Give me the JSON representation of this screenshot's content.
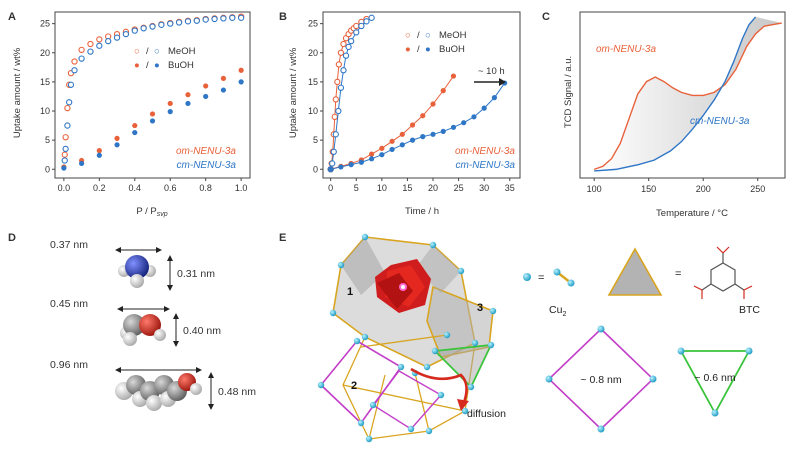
{
  "colors": {
    "om": "#e8613a",
    "cm": "#2f77c6",
    "axis": "#444444",
    "shade": "#cfcfcf",
    "oxygen": "#d62a1f",
    "nitrogen": "#2b3fa0",
    "carbon": "#8a8a8a",
    "hydrogen": "#f2f2f2",
    "cu": "#29c3e8",
    "magenta": "#c23ec8",
    "green": "#3bc43b",
    "gold": "#d9a520"
  },
  "panel_labels": [
    "A",
    "B",
    "C",
    "D",
    "E"
  ],
  "chart_data": [
    {
      "type": "scatter",
      "panel": "A",
      "xlabel": "P / P",
      "xlabel_sub": "svp",
      "ylabel": "Uptake amount / wt%",
      "xlim": [
        -0.05,
        1.05
      ],
      "ylim": [
        -1.5,
        27
      ],
      "xticks": [
        "0.0",
        "0.2",
        "0.4",
        "0.6",
        "0.8",
        "1.0"
      ],
      "yticks": [
        "0",
        "5",
        "10",
        "15",
        "20",
        "25"
      ],
      "legend": [
        {
          "left": "/",
          "right": "MeOH",
          "marker": "ring"
        },
        {
          "left": "/",
          "right": "BuOH",
          "marker": "dot"
        }
      ],
      "series_labels": [
        "om-NENU-3a",
        "cm-NENU-3a"
      ],
      "series": [
        {
          "name": "om MeOH",
          "color_key": "om",
          "marker": "ring",
          "x": [
            0.005,
            0.01,
            0.02,
            0.03,
            0.04,
            0.06,
            0.1,
            0.15,
            0.2,
            0.25,
            0.3,
            0.35,
            0.4,
            0.45,
            0.5,
            0.55,
            0.6,
            0.65,
            0.7,
            0.75,
            0.8,
            0.85,
            0.9,
            0.95,
            1.0
          ],
          "y": [
            2.5,
            5.5,
            10.5,
            14.5,
            16.5,
            18.5,
            20.5,
            21.5,
            22.3,
            22.8,
            23.2,
            23.6,
            24.0,
            24.3,
            24.6,
            24.9,
            25.1,
            25.3,
            25.5,
            25.6,
            25.8,
            25.9,
            26.0,
            26.1,
            26.2
          ]
        },
        {
          "name": "cm MeOH",
          "color_key": "cm",
          "marker": "ring",
          "x": [
            0.005,
            0.01,
            0.02,
            0.03,
            0.04,
            0.06,
            0.1,
            0.15,
            0.2,
            0.25,
            0.3,
            0.35,
            0.4,
            0.45,
            0.5,
            0.55,
            0.6,
            0.65,
            0.7,
            0.75,
            0.8,
            0.85,
            0.9,
            0.95,
            1.0
          ],
          "y": [
            1.5,
            3.5,
            7.5,
            11.5,
            14.5,
            17.0,
            19.0,
            20.2,
            21.2,
            22.0,
            22.6,
            23.2,
            23.8,
            24.2,
            24.5,
            24.8,
            25.0,
            25.2,
            25.4,
            25.5,
            25.7,
            25.8,
            25.9,
            26.0,
            26.0
          ]
        },
        {
          "name": "om BuOH",
          "color_key": "om",
          "marker": "dot",
          "x": [
            0.0,
            0.1,
            0.2,
            0.3,
            0.4,
            0.5,
            0.6,
            0.7,
            0.8,
            0.9,
            1.0
          ],
          "y": [
            0.4,
            1.5,
            3.2,
            5.3,
            7.5,
            9.5,
            11.3,
            12.8,
            14.3,
            15.6,
            17.0
          ]
        },
        {
          "name": "cm BuOH",
          "color_key": "cm",
          "marker": "dot",
          "x": [
            0.0,
            0.1,
            0.2,
            0.3,
            0.4,
            0.5,
            0.6,
            0.7,
            0.8,
            0.9,
            1.0
          ],
          "y": [
            0.2,
            1.0,
            2.4,
            4.2,
            6.3,
            8.3,
            9.9,
            11.3,
            12.5,
            13.6,
            15.0
          ]
        }
      ]
    },
    {
      "type": "line",
      "panel": "B",
      "xlabel": "Time / h",
      "ylabel": "Uptake amount / wt%",
      "xlim": [
        -1.5,
        37
      ],
      "ylim": [
        -1.5,
        27
      ],
      "xticks": [
        "0",
        "5",
        "10",
        "15",
        "20",
        "25",
        "30",
        "35"
      ],
      "yticks": [
        "0",
        "5",
        "10",
        "15",
        "20",
        "25"
      ],
      "legend": [
        {
          "left": "/",
          "right": "MeOH",
          "marker": "ring"
        },
        {
          "left": "/",
          "right": "BuOH",
          "marker": "dot"
        }
      ],
      "annotation": "~ 10 h",
      "series_labels": [
        "om-NENU-3a",
        "cm-NENU-3a"
      ],
      "series": [
        {
          "name": "om MeOH",
          "color_key": "om",
          "marker": "ring",
          "x": [
            0,
            0.2,
            0.4,
            0.6,
            0.8,
            1,
            1.3,
            1.6,
            2,
            2.5,
            3,
            3.5,
            4,
            4.5,
            5,
            6,
            7
          ],
          "y": [
            0,
            1,
            3,
            6,
            9,
            12,
            15,
            18,
            20,
            21.5,
            22.5,
            23.2,
            23.8,
            24.2,
            24.6,
            25.3,
            25.8
          ]
        },
        {
          "name": "cm MeOH",
          "color_key": "cm",
          "marker": "ring",
          "x": [
            0,
            0.3,
            0.6,
            1,
            1.5,
            2,
            2.5,
            3,
            3.5,
            4,
            5,
            6,
            7,
            8
          ],
          "y": [
            0,
            1,
            3,
            6,
            10,
            14,
            17,
            19.5,
            21,
            22,
            23.5,
            24.6,
            25.4,
            26
          ]
        },
        {
          "name": "om BuOH",
          "color_key": "om",
          "marker": "dot",
          "x": [
            0,
            2,
            4,
            6,
            8,
            10,
            12,
            14,
            16,
            18,
            20,
            22,
            24
          ],
          "y": [
            0,
            0.5,
            1,
            1.6,
            2.6,
            3.6,
            4.8,
            6,
            7.6,
            9.2,
            11.2,
            13.5,
            16
          ]
        },
        {
          "name": "cm BuOH",
          "color_key": "cm",
          "marker": "dot",
          "x": [
            0,
            2,
            4,
            6,
            8,
            10,
            12,
            14,
            16,
            18,
            20,
            22,
            24,
            26,
            28,
            30,
            32,
            34
          ],
          "y": [
            0,
            0.4,
            0.8,
            1.2,
            1.8,
            2.5,
            3.4,
            4.2,
            5,
            5.6,
            6,
            6.5,
            7.2,
            8,
            9,
            10.5,
            12.3,
            14.8
          ]
        }
      ]
    },
    {
      "type": "line",
      "panel": "C",
      "xlabel": "Temperature / °C",
      "ylabel": "TCD Signal / a.u.",
      "xlim": [
        87,
        275
      ],
      "ylim": [
        0,
        1
      ],
      "xticks": [
        "100",
        "150",
        "200",
        "250"
      ],
      "series_labels": [
        "om-NENU-3a",
        "cm-NENU-3a"
      ],
      "series": [
        {
          "name": "om-NENU-3a",
          "color_key": "om",
          "x": [
            100,
            108,
            116,
            124,
            132,
            140,
            148,
            156,
            164,
            172,
            180,
            190,
            200,
            210,
            220,
            230,
            240,
            248,
            256,
            264,
            272
          ],
          "y": [
            0.03,
            0.05,
            0.1,
            0.2,
            0.36,
            0.52,
            0.6,
            0.63,
            0.6,
            0.56,
            0.53,
            0.51,
            0.51,
            0.53,
            0.58,
            0.68,
            0.83,
            0.91,
            0.96,
            0.97,
            0.98
          ]
        },
        {
          "name": "cm-NENU-3a",
          "color_key": "cm",
          "x": [
            100,
            120,
            140,
            155,
            170,
            180,
            190,
            200,
            210,
            220,
            228,
            236,
            242,
            248
          ],
          "y": [
            0.02,
            0.03,
            0.06,
            0.09,
            0.15,
            0.21,
            0.29,
            0.38,
            0.48,
            0.6,
            0.73,
            0.88,
            0.97,
            1.02
          ]
        }
      ]
    }
  ],
  "panel_d": {
    "molecules": [
      {
        "name": "methanol-like",
        "width_label": "0.37 nm",
        "height_label": "0.31 nm"
      },
      {
        "name": "ethanol-like",
        "width_label": "0.45 nm",
        "height_label": "0.40 nm"
      },
      {
        "name": "butanol",
        "width_label": "0.96 nm",
        "height_label": "0.48 nm"
      }
    ]
  },
  "panel_e": {
    "cage_labels": [
      "1",
      "2",
      "3"
    ],
    "diffusion_label": "diffusion",
    "legend_cu": "Cu",
    "legend_cu_sub": "2",
    "legend_btc": "BTC",
    "equals": "=",
    "square_label": "~ 0.8 nm",
    "triangle_label": "~ 0.6 nm"
  }
}
